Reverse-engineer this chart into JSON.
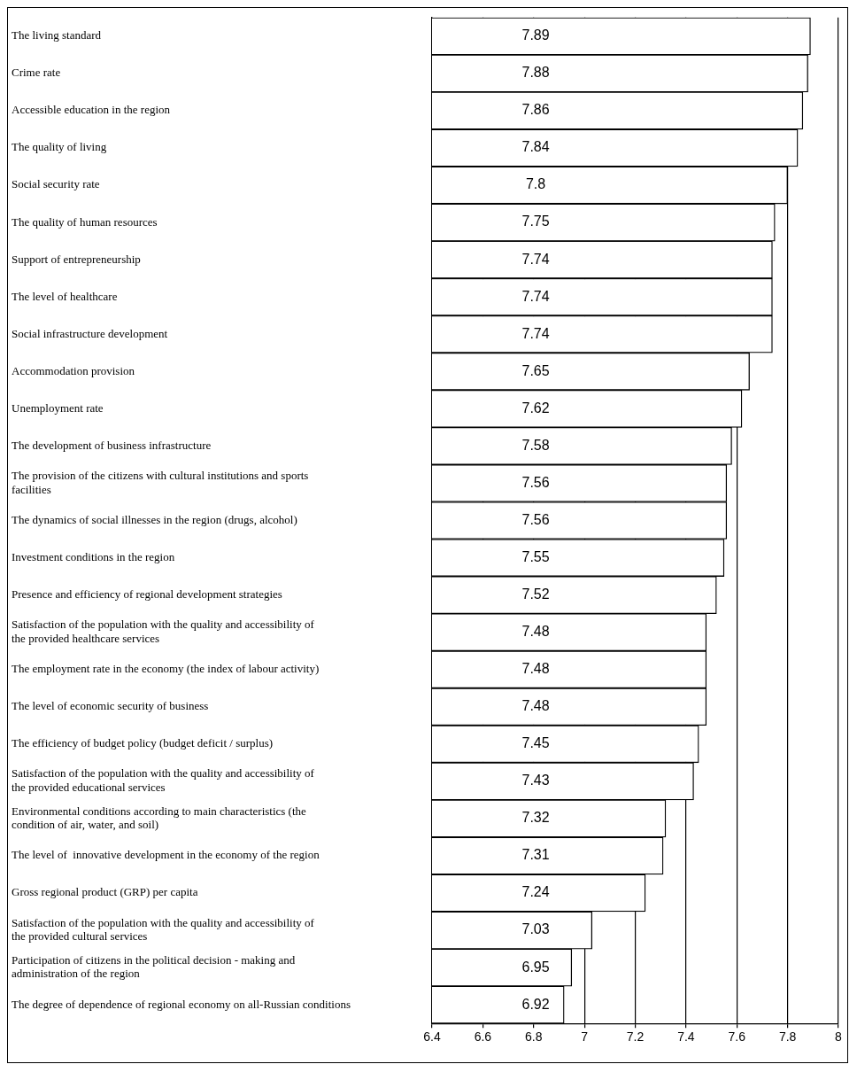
{
  "chart_data": {
    "type": "bar",
    "orientation": "horizontal",
    "categories": [
      "The living standard",
      "Crime rate",
      "Accessible education in the region",
      "The quality of living",
      "Social security rate",
      "The quality of human resources",
      "Support of entrepreneurship",
      "The level of healthcare",
      "Social infrastructure development",
      "Accommodation provision",
      "Unemployment rate",
      "The development of business infrastructure",
      "The provision of the citizens with cultural institutions and sports facilities",
      "The dynamics of social illnesses in the region (drugs, alcohol)",
      "Investment conditions in the region",
      "Presence and efficiency of regional development strategies",
      "Satisfaction of the population with the quality and accessibility of the provided healthcare services",
      "The employment rate in the economy (the index of labour activity)",
      "The level of economic security of business",
      "The efficiency of budget policy (budget deficit / surplus)",
      "Satisfaction of the population with the quality and accessibility of the provided educational services",
      "Environmental conditions according to main characteristics (the condition of air, water, and soil)",
      "The level of  innovative development in the economy of the region",
      "Gross regional product (GRP) per capita",
      "Satisfaction of the population with the quality and accessibility of the provided cultural services",
      "Participation of citizens in the political decision - making and administration of the region",
      "The degree of dependence of regional economy on all-Russian conditions"
    ],
    "values": [
      7.89,
      7.88,
      7.86,
      7.84,
      7.8,
      7.75,
      7.74,
      7.74,
      7.74,
      7.65,
      7.62,
      7.58,
      7.56,
      7.56,
      7.55,
      7.52,
      7.48,
      7.48,
      7.48,
      7.45,
      7.43,
      7.32,
      7.31,
      7.24,
      7.03,
      6.95,
      6.92
    ],
    "color": "#ffffff",
    "xlim": [
      6.4,
      8
    ],
    "xticks": [
      6.4,
      6.6,
      6.8,
      7,
      7.2,
      7.4,
      7.6,
      7.8,
      8
    ],
    "grid": "x",
    "data_labels": true
  }
}
